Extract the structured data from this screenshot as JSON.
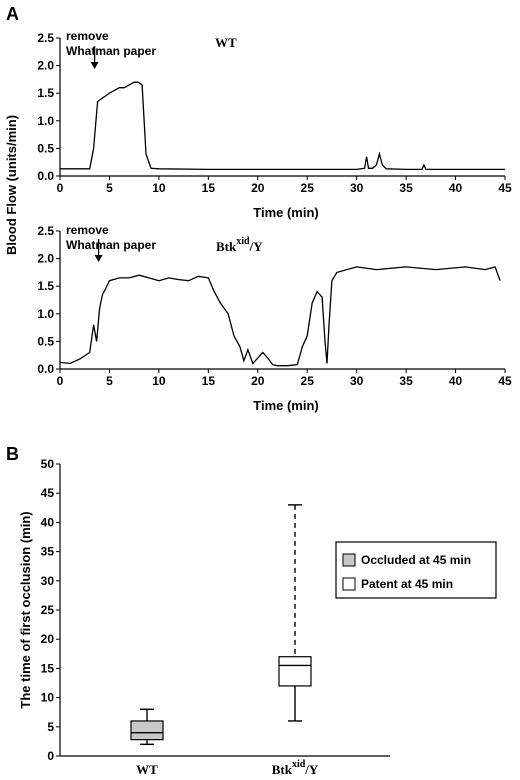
{
  "panels": {
    "a_label": "A",
    "b_label": "B"
  },
  "chart_data": [
    {
      "type": "line",
      "panel": "A-top",
      "condition": "WT",
      "annotation": [
        "remove",
        "Whatman paper"
      ],
      "annotation_x": 3.5,
      "xlabel": "Time (min)",
      "ylabel": "Blood Flow (units/min)",
      "xlim": [
        0,
        45
      ],
      "ylim": [
        0,
        2.5
      ],
      "xticks": [
        0,
        5,
        10,
        15,
        20,
        25,
        30,
        35,
        40,
        45
      ],
      "yticks": [
        0.0,
        0.5,
        1.0,
        1.5,
        2.0,
        2.5
      ],
      "series": [
        {
          "x": [
            0,
            1,
            2,
            3,
            3.4,
            3.8,
            4.2,
            4.6,
            5.0,
            5.5,
            6.0,
            6.5,
            7.0,
            7.5,
            7.9,
            8.3,
            8.7,
            9.2,
            10,
            15,
            20,
            25,
            30,
            30.8,
            31.0,
            31.2,
            31.6,
            32.0,
            32.3,
            32.6,
            33.0,
            35,
            36.6,
            36.8,
            37.0,
            40,
            45
          ],
          "y": [
            0.13,
            0.13,
            0.13,
            0.13,
            0.5,
            1.35,
            1.4,
            1.45,
            1.5,
            1.55,
            1.6,
            1.6,
            1.65,
            1.7,
            1.7,
            1.65,
            0.4,
            0.14,
            0.13,
            0.12,
            0.12,
            0.12,
            0.12,
            0.14,
            0.35,
            0.14,
            0.14,
            0.2,
            0.4,
            0.2,
            0.13,
            0.12,
            0.12,
            0.2,
            0.12,
            0.12,
            0.12
          ]
        }
      ]
    },
    {
      "type": "line",
      "panel": "A-bottom",
      "condition": "Btk",
      "condition_sup": "xid",
      "condition_suffix": "/Y",
      "annotation": [
        "remove",
        "Whatman paper"
      ],
      "annotation_x": 3.9,
      "xlabel": "Time (min)",
      "xlim": [
        0,
        45
      ],
      "ylim": [
        0,
        2.5
      ],
      "xticks": [
        0,
        5,
        10,
        15,
        20,
        25,
        30,
        35,
        40,
        45
      ],
      "yticks": [
        0.0,
        0.5,
        1.0,
        1.5,
        2.0,
        2.5
      ],
      "series": [
        {
          "x": [
            0,
            1,
            2,
            3,
            3.4,
            3.7,
            4.0,
            4.3,
            4.6,
            5.0,
            6.0,
            7.0,
            8.0,
            9.0,
            10,
            11,
            12,
            13,
            14,
            15,
            15.6,
            16.2,
            17.0,
            17.6,
            18.2,
            18.6,
            19.0,
            19.5,
            20.0,
            20.5,
            21.0,
            21.5,
            22.0,
            23.0,
            24.0,
            24.5,
            25.0,
            25.5,
            26.0,
            26.5,
            26.8,
            27.0,
            27.2,
            27.5,
            28.0,
            29.0,
            30.0,
            32.0,
            35.0,
            38.0,
            41.0,
            43.0,
            44.0,
            44.5
          ],
          "y": [
            0.12,
            0.1,
            0.18,
            0.3,
            0.8,
            0.5,
            1.1,
            1.35,
            1.45,
            1.6,
            1.65,
            1.65,
            1.7,
            1.65,
            1.6,
            1.65,
            1.62,
            1.6,
            1.68,
            1.65,
            1.4,
            1.2,
            1.0,
            0.6,
            0.4,
            0.15,
            0.35,
            0.1,
            0.2,
            0.3,
            0.2,
            0.08,
            0.06,
            0.06,
            0.08,
            0.4,
            0.6,
            1.2,
            1.4,
            1.3,
            0.5,
            0.1,
            0.8,
            1.6,
            1.75,
            1.8,
            1.85,
            1.8,
            1.85,
            1.8,
            1.85,
            1.8,
            1.85,
            1.6
          ]
        }
      ]
    },
    {
      "type": "box",
      "panel": "B",
      "ylabel": "The time of first occlusion (min)",
      "ylim": [
        0,
        50
      ],
      "yticks": [
        0,
        5,
        10,
        15,
        20,
        25,
        30,
        35,
        40,
        45,
        50
      ],
      "categories": [
        "WT",
        "Btk xid/Y"
      ],
      "category_labels": [
        {
          "main": "WT",
          "sup": "",
          "suffix": ""
        },
        {
          "main": "Btk",
          "sup": "xid",
          "suffix": "/Y"
        }
      ],
      "boxes": [
        {
          "name": "WT",
          "min": 2,
          "q1": 2.8,
          "median": 4,
          "q3": 6,
          "max": 8,
          "fill": "#c8c8c8",
          "whisker_dashed": false
        },
        {
          "name": "Btk xid/Y",
          "min": 6,
          "q1": 12,
          "median": 15.5,
          "q3": 17,
          "max": 43,
          "fill": "#ffffff",
          "whisker_dashed": true
        }
      ],
      "legend": {
        "position": "right",
        "entries": [
          {
            "label": "Occluded at 45 min",
            "color": "#c8c8c8"
          },
          {
            "label": "Patent at 45 min",
            "color": "#ffffff"
          }
        ]
      }
    }
  ]
}
